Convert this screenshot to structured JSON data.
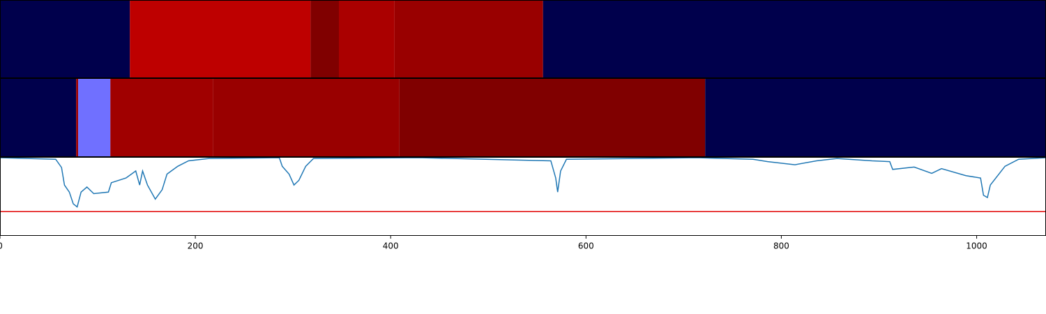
{
  "chart_data": [
    {
      "type": "timeline",
      "starts": [
        0,
        133,
        318,
        347,
        404,
        556
      ],
      "ends": [
        133,
        318,
        347,
        404,
        556,
        1071
      ],
      "colors": [
        "#00004c",
        "#be0000",
        "#800000",
        "#aa0000",
        "#990000",
        "#00004c"
      ],
      "xlim": [
        0,
        1071
      ]
    },
    {
      "type": "timeline",
      "starts": [
        0,
        78,
        80,
        113,
        218,
        409,
        722
      ],
      "ends": [
        78,
        80,
        113,
        218,
        409,
        722,
        1071
      ],
      "colors": [
        "#00004c",
        "#a00000",
        "#7070ff",
        "#a00000",
        "#990000",
        "#800000",
        "#00004c"
      ],
      "xlim": [
        0,
        1071
      ]
    },
    {
      "type": "line",
      "x": [
        0,
        57,
        63,
        66,
        71,
        75,
        79,
        83,
        89,
        96,
        111,
        114,
        129,
        139,
        143,
        146,
        151,
        159,
        166,
        171,
        182,
        193,
        214,
        286,
        289,
        296,
        301,
        306,
        313,
        321,
        429,
        564,
        569,
        571,
        574,
        580,
        714,
        771,
        786,
        814,
        836,
        857,
        893,
        911,
        914,
        936,
        954,
        964,
        989,
        1004,
        1007,
        1011,
        1014,
        1029,
        1043,
        1071
      ],
      "values": [
        1.0,
        0.98,
        0.875,
        0.65,
        0.56,
        0.41,
        0.37,
        0.56,
        0.625,
        0.54,
        0.56,
        0.68,
        0.74,
        0.83,
        0.65,
        0.83,
        0.65,
        0.47,
        0.59,
        0.79,
        0.89,
        0.96,
        0.99,
        1.0,
        0.89,
        0.79,
        0.65,
        0.71,
        0.89,
        0.99,
        1.0,
        0.96,
        0.74,
        0.56,
        0.83,
        0.98,
        1.0,
        0.98,
        0.95,
        0.91,
        0.96,
        0.99,
        0.96,
        0.95,
        0.85,
        0.88,
        0.8,
        0.86,
        0.77,
        0.74,
        0.52,
        0.49,
        0.65,
        0.89,
        0.98,
        1.0
      ],
      "color": "#1f77b4",
      "threshold": 0.31,
      "threshold_color": "#e00000",
      "xlim": [
        0,
        1071
      ],
      "ylim": [
        0,
        1
      ],
      "xticks": [
        0,
        200,
        400,
        600,
        800,
        1000
      ]
    }
  ]
}
